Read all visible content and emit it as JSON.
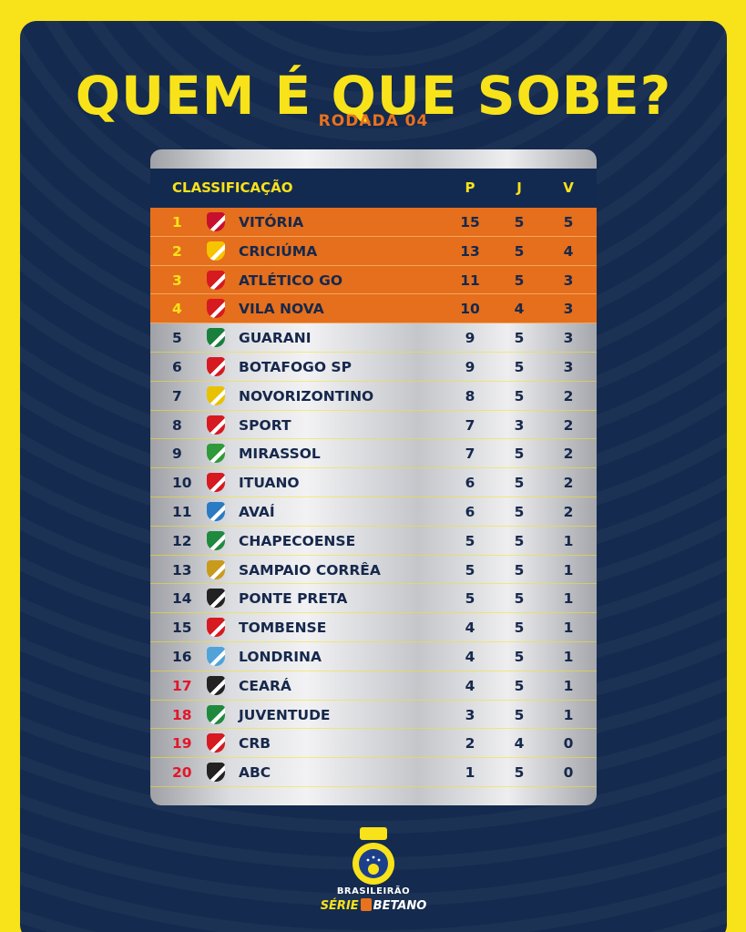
{
  "header": {
    "title": "QUEM É QUE SOBE?",
    "subtitle": "RODADA 04"
  },
  "table": {
    "columns": {
      "team": "CLASSIFICAÇÃO",
      "p": "P",
      "j": "J",
      "v": "V"
    },
    "rows": [
      {
        "pos": "1",
        "team": "VITÓRIA",
        "p": "15",
        "j": "5",
        "v": "5",
        "zone": "top",
        "crest_color": "#c8102e"
      },
      {
        "pos": "2",
        "team": "CRICIÚMA",
        "p": "13",
        "j": "5",
        "v": "4",
        "zone": "top",
        "crest_color": "#f6c400"
      },
      {
        "pos": "3",
        "team": "ATLÉTICO GO",
        "p": "11",
        "j": "5",
        "v": "3",
        "zone": "top",
        "crest_color": "#d71920"
      },
      {
        "pos": "4",
        "team": "VILA NOVA",
        "p": "10",
        "j": "4",
        "v": "3",
        "zone": "top",
        "crest_color": "#d71920"
      },
      {
        "pos": "5",
        "team": "GUARANI",
        "p": "9",
        "j": "5",
        "v": "3",
        "zone": "mid",
        "crest_color": "#1a7f3c"
      },
      {
        "pos": "6",
        "team": "BOTAFOGO SP",
        "p": "9",
        "j": "5",
        "v": "3",
        "zone": "mid",
        "crest_color": "#d71920"
      },
      {
        "pos": "7",
        "team": "NOVORIZONTINO",
        "p": "8",
        "j": "5",
        "v": "2",
        "zone": "mid",
        "crest_color": "#e8c200"
      },
      {
        "pos": "8",
        "team": "SPORT",
        "p": "7",
        "j": "3",
        "v": "2",
        "zone": "mid",
        "crest_color": "#d71920"
      },
      {
        "pos": "9",
        "team": "MIRASSOL",
        "p": "7",
        "j": "5",
        "v": "2",
        "zone": "mid",
        "crest_color": "#2f9a3a"
      },
      {
        "pos": "10",
        "team": "ITUANO",
        "p": "6",
        "j": "5",
        "v": "2",
        "zone": "mid",
        "crest_color": "#d71920"
      },
      {
        "pos": "11",
        "team": "AVAÍ",
        "p": "6",
        "j": "5",
        "v": "2",
        "zone": "mid",
        "crest_color": "#2a7bc4"
      },
      {
        "pos": "12",
        "team": "CHAPECOENSE",
        "p": "5",
        "j": "5",
        "v": "1",
        "zone": "mid",
        "crest_color": "#1f8a3e"
      },
      {
        "pos": "13",
        "team": "SAMPAIO CORRÊA",
        "p": "5",
        "j": "5",
        "v": "1",
        "zone": "mid",
        "crest_color": "#c89b1c"
      },
      {
        "pos": "14",
        "team": "PONTE PRETA",
        "p": "5",
        "j": "5",
        "v": "1",
        "zone": "mid",
        "crest_color": "#222222"
      },
      {
        "pos": "15",
        "team": "TOMBENSE",
        "p": "4",
        "j": "5",
        "v": "1",
        "zone": "mid",
        "crest_color": "#d71920"
      },
      {
        "pos": "16",
        "team": "LONDRINA",
        "p": "4",
        "j": "5",
        "v": "1",
        "zone": "mid",
        "crest_color": "#4fa3d9"
      },
      {
        "pos": "17",
        "team": "CEARÁ",
        "p": "4",
        "j": "5",
        "v": "1",
        "zone": "rel",
        "crest_color": "#222222"
      },
      {
        "pos": "18",
        "team": "JUVENTUDE",
        "p": "3",
        "j": "5",
        "v": "1",
        "zone": "rel",
        "crest_color": "#1f8a3e"
      },
      {
        "pos": "19",
        "team": "CRB",
        "p": "2",
        "j": "4",
        "v": "0",
        "zone": "rel",
        "crest_color": "#d71920"
      },
      {
        "pos": "20",
        "team": "ABC",
        "p": "1",
        "j": "5",
        "v": "0",
        "zone": "rel",
        "crest_color": "#222222"
      }
    ]
  },
  "footer": {
    "brand_line1": "BRASILEIRÃO",
    "brand_serie": "SÉRIE",
    "brand_sponsor": "BETANO"
  }
}
